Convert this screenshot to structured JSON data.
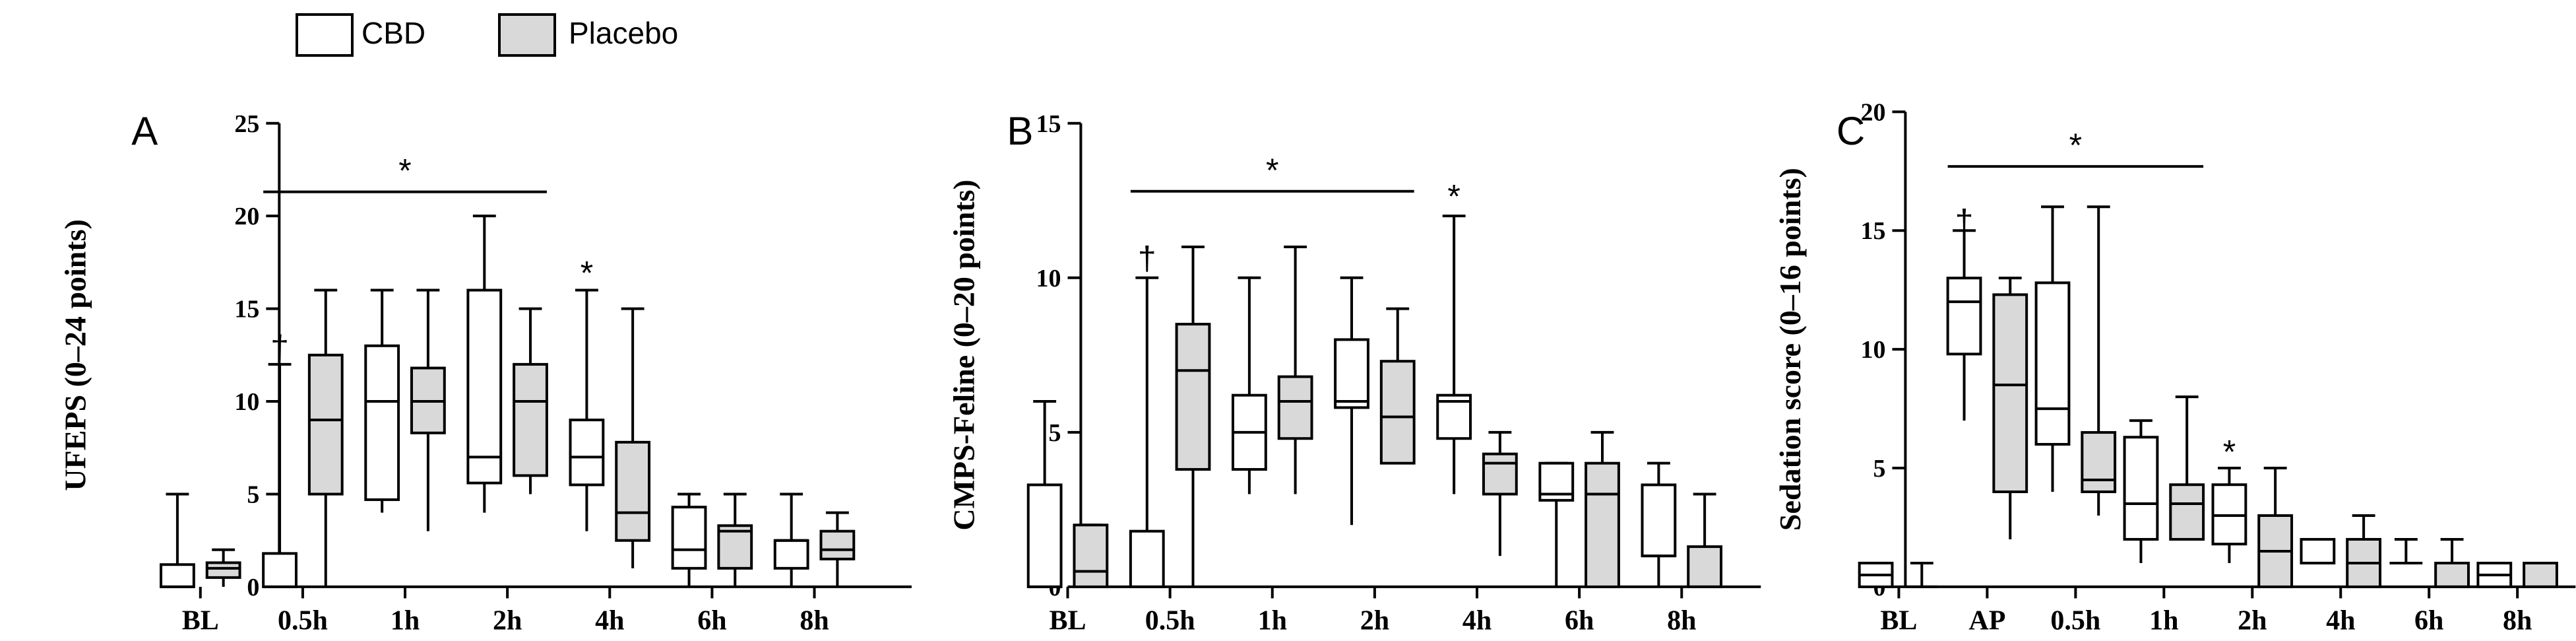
{
  "legend": {
    "items": [
      {
        "label": "CBD",
        "fill": "#ffffff"
      },
      {
        "label": "Placebo",
        "fill": "#d9d9d9"
      }
    ]
  },
  "colors": {
    "stroke": "#000000",
    "cbd_fill": "#ffffff",
    "placebo_fill": "#d9d9d9"
  },
  "chart_data": [
    {
      "type": "boxplot",
      "panel": "A",
      "ylabel": "UFEPS (0–24 points)",
      "ylim": [
        0,
        25
      ],
      "yticks": [
        0,
        5,
        10,
        15,
        20,
        25
      ],
      "categories": [
        "BL",
        "0.5h",
        "1h",
        "2h",
        "4h",
        "6h",
        "8h"
      ],
      "series": [
        {
          "name": "CBD",
          "boxes": [
            {
              "min": 0,
              "q1": 0,
              "median": 0,
              "q3": 1.2,
              "max": 5
            },
            {
              "min": 0,
              "q1": 0,
              "median": 0,
              "q3": 1.8,
              "max": 12
            },
            {
              "min": 4,
              "q1": 4.7,
              "median": 10,
              "q3": 13,
              "max": 16
            },
            {
              "min": 4,
              "q1": 5.6,
              "median": 7,
              "q3": 16,
              "max": 20
            },
            {
              "min": 3,
              "q1": 5.5,
              "median": 7,
              "q3": 9,
              "max": 16
            },
            {
              "min": 0,
              "q1": 1,
              "median": 2,
              "q3": 4.3,
              "max": 5
            },
            {
              "min": 0,
              "q1": 1,
              "median": 2.5,
              "q3": 2.5,
              "max": 5
            }
          ]
        },
        {
          "name": "Placebo",
          "boxes": [
            {
              "min": 0,
              "q1": 0.5,
              "median": 1,
              "q3": 1.3,
              "max": 2
            },
            {
              "min": 0,
              "q1": 5,
              "median": 9,
              "q3": 12.5,
              "max": 16
            },
            {
              "min": 3,
              "q1": 8.3,
              "median": 10,
              "q3": 11.8,
              "max": 16
            },
            {
              "min": 5,
              "q1": 6,
              "median": 10,
              "q3": 12,
              "max": 15
            },
            {
              "min": 1,
              "q1": 2.5,
              "median": 4,
              "q3": 7.8,
              "max": 15
            },
            {
              "min": 0,
              "q1": 1,
              "median": 3,
              "q3": 3.3,
              "max": 5
            },
            {
              "min": 0,
              "q1": 1.5,
              "median": 2,
              "q3": 3,
              "max": 4
            }
          ]
        }
      ],
      "annotations": [
        {
          "text": "*",
          "type": "bracket",
          "from": 1,
          "to": 3,
          "y": 21.3
        },
        {
          "text": "†",
          "type": "mark",
          "category": 1,
          "series": 0,
          "y": 13.2
        },
        {
          "text": "*",
          "type": "mark",
          "category": 4,
          "series": 0,
          "y": 17.2
        }
      ]
    },
    {
      "type": "boxplot",
      "panel": "B",
      "ylabel": "CMPS-Feline (0–20 points)",
      "ylim": [
        0,
        15
      ],
      "yticks": [
        0,
        5,
        10,
        15
      ],
      "categories": [
        "BL",
        "0.5h",
        "1h",
        "2h",
        "4h",
        "6h",
        "8h"
      ],
      "series": [
        {
          "name": "CBD",
          "boxes": [
            {
              "min": 0,
              "q1": 0,
              "median": 0,
              "q3": 3.3,
              "max": 6
            },
            {
              "min": 0,
              "q1": 0,
              "median": 0,
              "q3": 1.8,
              "max": 10
            },
            {
              "min": 3,
              "q1": 3.8,
              "median": 5,
              "q3": 6.2,
              "max": 10
            },
            {
              "min": 2,
              "q1": 5.8,
              "median": 6,
              "q3": 8,
              "max": 10
            },
            {
              "min": 3,
              "q1": 4.8,
              "median": 6,
              "q3": 6.2,
              "max": 12
            },
            {
              "min": 0,
              "q1": 2.8,
              "median": 3,
              "q3": 4,
              "max": 4
            },
            {
              "min": 0,
              "q1": 1,
              "median": 1,
              "q3": 3.3,
              "max": 4
            }
          ]
        },
        {
          "name": "Placebo",
          "boxes": [
            {
              "min": 0,
              "q1": 0,
              "median": 0.5,
              "q3": 2,
              "max": 2
            },
            {
              "min": 0,
              "q1": 3.8,
              "median": 7,
              "q3": 8.5,
              "max": 11
            },
            {
              "min": 3,
              "q1": 4.8,
              "median": 6,
              "q3": 6.8,
              "max": 11
            },
            {
              "min": 4,
              "q1": 4,
              "median": 5.5,
              "q3": 7.3,
              "max": 9
            },
            {
              "min": 1,
              "q1": 3,
              "median": 4,
              "q3": 4.3,
              "max": 5
            },
            {
              "min": 0,
              "q1": 0,
              "median": 3,
              "q3": 4,
              "max": 5
            },
            {
              "min": 0,
              "q1": 0,
              "median": 0,
              "q3": 1.3,
              "max": 3
            }
          ]
        }
      ],
      "annotations": [
        {
          "text": "*",
          "type": "bracket",
          "from": 1,
          "to": 3,
          "y": 12.8
        },
        {
          "text": "†",
          "type": "mark",
          "category": 1,
          "series": 0,
          "y": 10.8
        },
        {
          "text": "*",
          "type": "mark",
          "category": 4,
          "series": 0,
          "y": 12.8
        }
      ]
    },
    {
      "type": "boxplot",
      "panel": "C",
      "ylabel": "Sedation score (0–16 points)",
      "ylim": [
        0,
        20
      ],
      "yticks": [
        0,
        5,
        10,
        15,
        20
      ],
      "categories": [
        "BL",
        "AP",
        "0.5h",
        "1h",
        "2h",
        "4h",
        "6h",
        "8h"
      ],
      "series": [
        {
          "name": "CBD",
          "boxes": [
            {
              "min": 0,
              "q1": 0,
              "median": 0.5,
              "q3": 1,
              "max": 1
            },
            {
              "min": 7,
              "q1": 9.8,
              "median": 12,
              "q3": 13,
              "max": 15
            },
            {
              "min": 4,
              "q1": 6,
              "median": 7.5,
              "q3": 12.8,
              "max": 16
            },
            {
              "min": 1,
              "q1": 2,
              "median": 3.5,
              "q3": 6.3,
              "max": 7
            },
            {
              "min": 1,
              "q1": 1.8,
              "median": 3,
              "q3": 4.3,
              "max": 5
            },
            {
              "min": 1,
              "q1": 1,
              "median": 1,
              "q3": 2,
              "max": 2
            },
            {
              "min": 1,
              "q1": 1,
              "median": 1,
              "q3": 1,
              "max": 2
            },
            {
              "min": 0,
              "q1": 0,
              "median": 0.5,
              "q3": 1,
              "max": 1
            }
          ]
        },
        {
          "name": "Placebo",
          "boxes": [
            {
              "min": 0,
              "q1": 0,
              "median": 0,
              "q3": 0,
              "max": 1
            },
            {
              "min": 2,
              "q1": 4,
              "median": 8.5,
              "q3": 12.3,
              "max": 13
            },
            {
              "min": 3,
              "q1": 4,
              "median": 4.5,
              "q3": 6.5,
              "max": 16
            },
            {
              "min": 2,
              "q1": 2,
              "median": 3.5,
              "q3": 4.3,
              "max": 8
            },
            {
              "min": 0,
              "q1": 0,
              "median": 1.5,
              "q3": 3,
              "max": 5
            },
            {
              "min": 0,
              "q1": 0,
              "median": 1,
              "q3": 2,
              "max": 3
            },
            {
              "min": 0,
              "q1": 0,
              "median": 0,
              "q3": 1,
              "max": 2
            },
            {
              "min": 0,
              "q1": 0,
              "median": 0,
              "q3": 1,
              "max": 1
            }
          ]
        }
      ],
      "annotations": [
        {
          "text": "*",
          "type": "bracket",
          "from": 1,
          "to": 3,
          "y": 17.7
        },
        {
          "text": "†",
          "type": "mark",
          "category": 1,
          "series": 0,
          "y": 15.6
        },
        {
          "text": "*",
          "type": "mark",
          "category": 4,
          "series": 0,
          "y": 5.9
        }
      ]
    }
  ]
}
